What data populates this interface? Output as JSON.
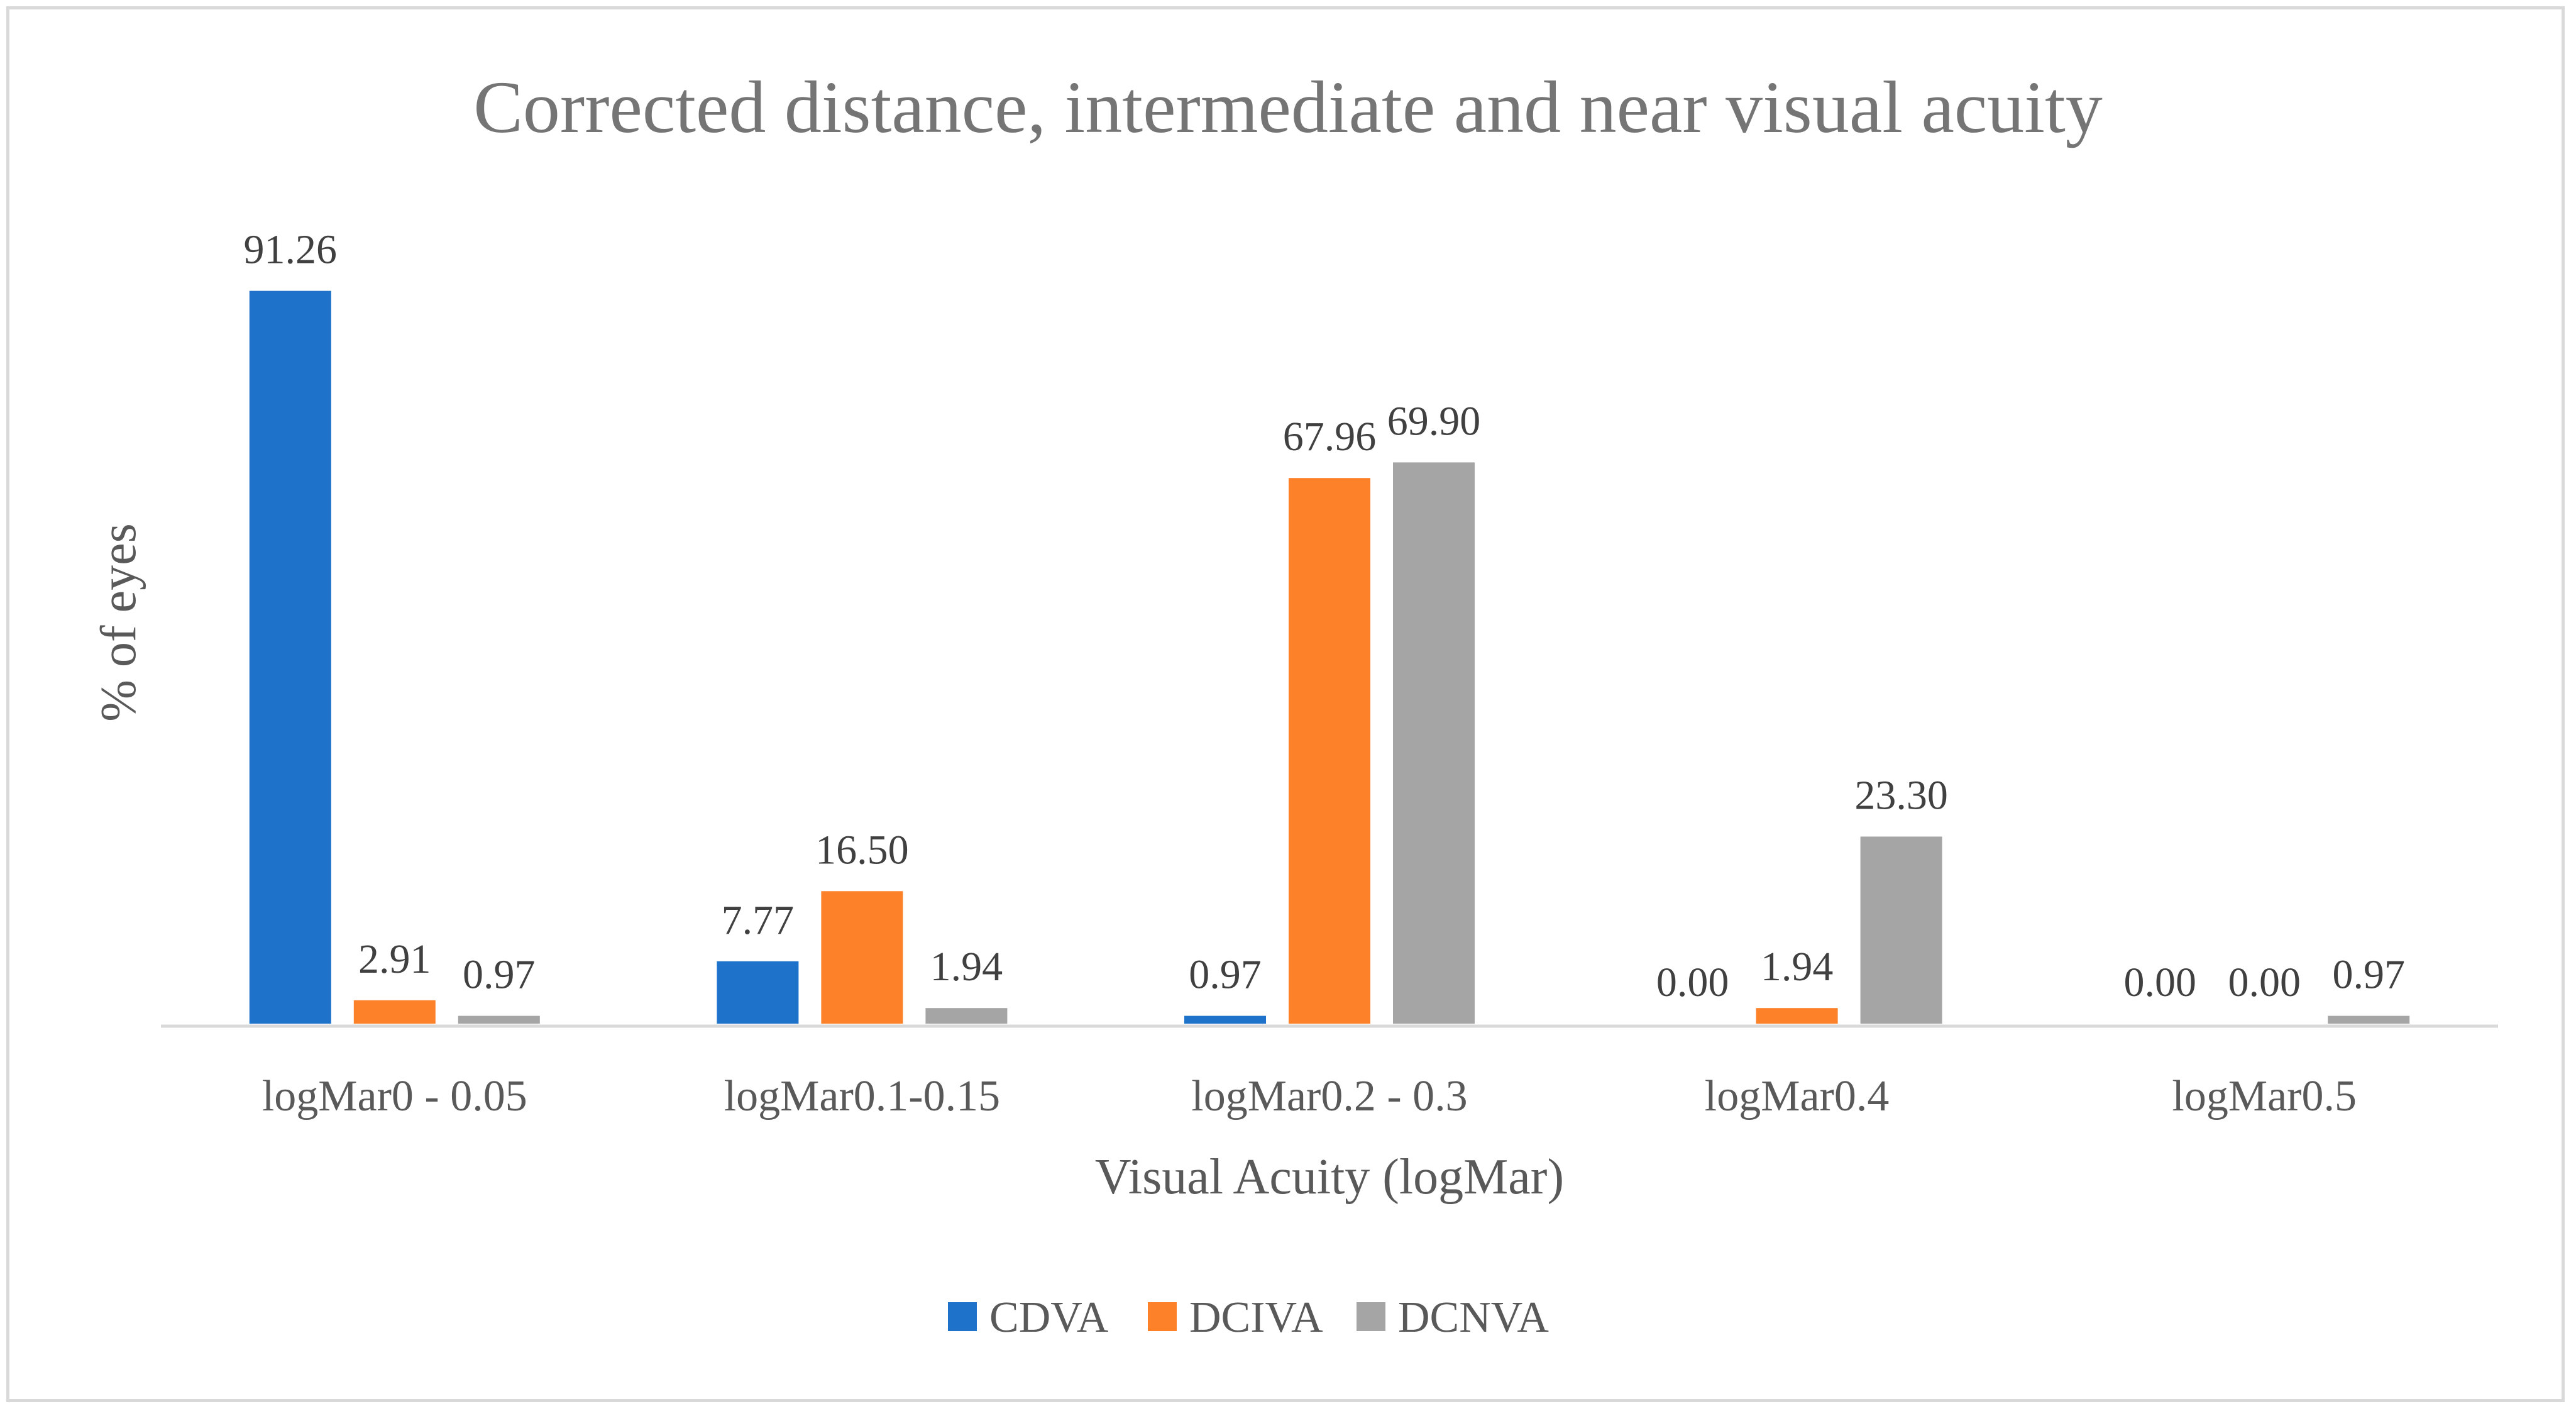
{
  "chart_data": {
    "type": "bar",
    "title": "Corrected distance, intermediate and near visual acuity",
    "xlabel": "Visual Acuity (logMar)",
    "ylabel": "% of eyes",
    "ylim": [
      0,
      100
    ],
    "grid": false,
    "legend_position": "bottom",
    "categories": [
      "logMar0 - 0.05",
      "logMar0.1-0.15",
      "logMar0.2 - 0.3",
      "logMar0.4",
      "logMar0.5"
    ],
    "series": [
      {
        "name": "CDVA",
        "color": "#1f72c9",
        "values": [
          91.26,
          7.77,
          0.97,
          0.0,
          0.0
        ],
        "labels": [
          "91.26",
          "7.77",
          "0.97",
          "0.00",
          "0.00"
        ]
      },
      {
        "name": "DCIVA",
        "color": "#fd8129",
        "values": [
          2.91,
          16.5,
          67.96,
          1.94,
          0.0
        ],
        "labels": [
          "2.91",
          "16.50",
          "67.96",
          "1.94",
          "0.00"
        ]
      },
      {
        "name": "DCNVA",
        "color": "#a5a5a5",
        "values": [
          0.97,
          1.94,
          69.9,
          23.3,
          0.97
        ],
        "labels": [
          "0.97",
          "1.94",
          "69.90",
          "23.30",
          "0.97"
        ]
      }
    ]
  }
}
